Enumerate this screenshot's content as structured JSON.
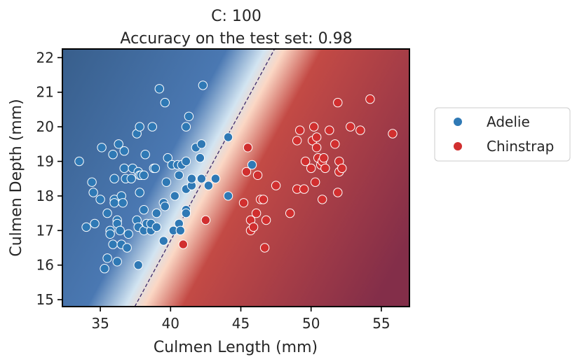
{
  "chart_data": {
    "type": "scatter",
    "title_line1": "C: 100",
    "title_line2": "Accuracy on the test set: 0.98",
    "xlabel": "Culmen Length (mm)",
    "ylabel": "Culmen Depth (mm)",
    "xlim": [
      32.3,
      57.0
    ],
    "ylim": [
      14.8,
      22.25
    ],
    "xticks": [
      35,
      40,
      45,
      50,
      55
    ],
    "yticks": [
      15,
      16,
      17,
      18,
      19,
      20,
      21,
      22
    ],
    "grid": false,
    "legend_position": "outside-right",
    "decision_boundary": {
      "p1": [
        37.45,
        14.8
      ],
      "p2": [
        47.4,
        22.25
      ]
    },
    "colors": {
      "adelie_region": "#355a85",
      "chinstrap_region": "#832e49",
      "adelie_point": "#2f79b5",
      "chinstrap_point": "#d12f2f",
      "boundary_line": "#3d2a6b"
    },
    "series": [
      {
        "name": "Adelie",
        "points": [
          [
            33.5,
            19.0
          ],
          [
            34.0,
            17.1
          ],
          [
            34.4,
            18.4
          ],
          [
            34.5,
            18.1
          ],
          [
            34.6,
            17.2
          ],
          [
            35.0,
            17.9
          ],
          [
            35.1,
            19.4
          ],
          [
            35.3,
            15.9
          ],
          [
            35.5,
            16.2
          ],
          [
            35.5,
            17.5
          ],
          [
            35.7,
            17.0
          ],
          [
            35.7,
            16.9
          ],
          [
            35.9,
            16.6
          ],
          [
            35.9,
            19.2
          ],
          [
            36.0,
            17.9
          ],
          [
            36.0,
            17.8
          ],
          [
            36.0,
            18.5
          ],
          [
            36.2,
            17.3
          ],
          [
            36.2,
            17.2
          ],
          [
            36.2,
            16.1
          ],
          [
            36.3,
            19.5
          ],
          [
            36.4,
            17.0
          ],
          [
            36.5,
            16.6
          ],
          [
            36.5,
            18.0
          ],
          [
            36.6,
            17.8
          ],
          [
            36.7,
            19.3
          ],
          [
            36.7,
            18.8
          ],
          [
            36.8,
            18.5
          ],
          [
            36.9,
            16.5
          ],
          [
            37.0,
            16.9
          ],
          [
            37.2,
            18.5
          ],
          [
            37.3,
            18.8
          ],
          [
            37.6,
            19.8
          ],
          [
            37.6,
            17.3
          ],
          [
            37.7,
            17.1
          ],
          [
            37.7,
            18.7
          ],
          [
            37.7,
            16.0
          ],
          [
            37.8,
            20.0
          ],
          [
            37.8,
            18.1
          ],
          [
            37.8,
            18.6
          ],
          [
            37.9,
            18.6
          ],
          [
            38.1,
            17.0
          ],
          [
            38.1,
            17.6
          ],
          [
            38.1,
            18.6
          ],
          [
            38.2,
            19.2
          ],
          [
            38.3,
            17.2
          ],
          [
            38.6,
            17.0
          ],
          [
            38.6,
            17.2
          ],
          [
            38.7,
            20.0
          ],
          [
            38.8,
            18.8
          ],
          [
            38.9,
            18.8
          ],
          [
            39.0,
            17.1
          ],
          [
            39.0,
            17.5
          ],
          [
            39.2,
            21.1
          ],
          [
            39.5,
            16.7
          ],
          [
            39.5,
            17.8
          ],
          [
            39.6,
            20.7
          ],
          [
            39.6,
            17.7
          ],
          [
            39.7,
            18.4
          ],
          [
            39.8,
            19.1
          ],
          [
            40.1,
            18.9
          ],
          [
            40.2,
            17.0
          ],
          [
            40.3,
            18.0
          ],
          [
            40.5,
            18.9
          ],
          [
            40.6,
            18.6
          ],
          [
            40.6,
            17.2
          ],
          [
            40.7,
            17.0
          ],
          [
            40.8,
            18.9
          ],
          [
            41.1,
            18.2
          ],
          [
            41.1,
            19.0
          ],
          [
            41.1,
            17.6
          ],
          [
            41.1,
            17.5
          ],
          [
            41.1,
            20.0
          ],
          [
            41.3,
            20.3
          ],
          [
            41.5,
            18.3
          ],
          [
            41.5,
            18.5
          ],
          [
            41.8,
            19.4
          ],
          [
            42.1,
            19.1
          ],
          [
            42.2,
            18.5
          ],
          [
            42.2,
            19.5
          ],
          [
            42.3,
            21.2
          ],
          [
            42.7,
            18.3
          ],
          [
            43.2,
            18.5
          ],
          [
            44.1,
            18.0
          ],
          [
            44.1,
            19.7
          ],
          [
            45.8,
            18.9
          ]
        ]
      },
      {
        "name": "Chinstrap",
        "points": [
          [
            40.9,
            16.6
          ],
          [
            42.5,
            17.3
          ],
          [
            45.2,
            17.8
          ],
          [
            45.4,
            18.7
          ],
          [
            45.5,
            19.4
          ],
          [
            45.7,
            17.0
          ],
          [
            45.7,
            17.3
          ],
          [
            45.9,
            17.1
          ],
          [
            46.1,
            17.5
          ],
          [
            46.2,
            18.6
          ],
          [
            46.4,
            17.9
          ],
          [
            46.6,
            17.9
          ],
          [
            46.7,
            16.5
          ],
          [
            46.8,
            17.3
          ],
          [
            47.5,
            18.3
          ],
          [
            48.5,
            17.5
          ],
          [
            49.0,
            19.6
          ],
          [
            49.0,
            18.2
          ],
          [
            49.2,
            19.9
          ],
          [
            49.5,
            18.2
          ],
          [
            49.6,
            19.0
          ],
          [
            50.0,
            18.8
          ],
          [
            50.1,
            19.6
          ],
          [
            50.2,
            20.0
          ],
          [
            50.3,
            18.4
          ],
          [
            50.4,
            19.7
          ],
          [
            50.4,
            19.4
          ],
          [
            50.5,
            19.1
          ],
          [
            50.7,
            18.9
          ],
          [
            50.8,
            19.0
          ],
          [
            50.8,
            17.9
          ],
          [
            50.9,
            19.1
          ],
          [
            51.0,
            18.8
          ],
          [
            51.3,
            19.9
          ],
          [
            51.7,
            19.5
          ],
          [
            51.9,
            20.7
          ],
          [
            51.9,
            18.1
          ],
          [
            52.0,
            19.0
          ],
          [
            52.0,
            18.7
          ],
          [
            52.2,
            18.8
          ],
          [
            52.8,
            20.0
          ],
          [
            53.5,
            19.9
          ],
          [
            54.2,
            20.8
          ],
          [
            55.8,
            19.8
          ]
        ]
      }
    ]
  }
}
